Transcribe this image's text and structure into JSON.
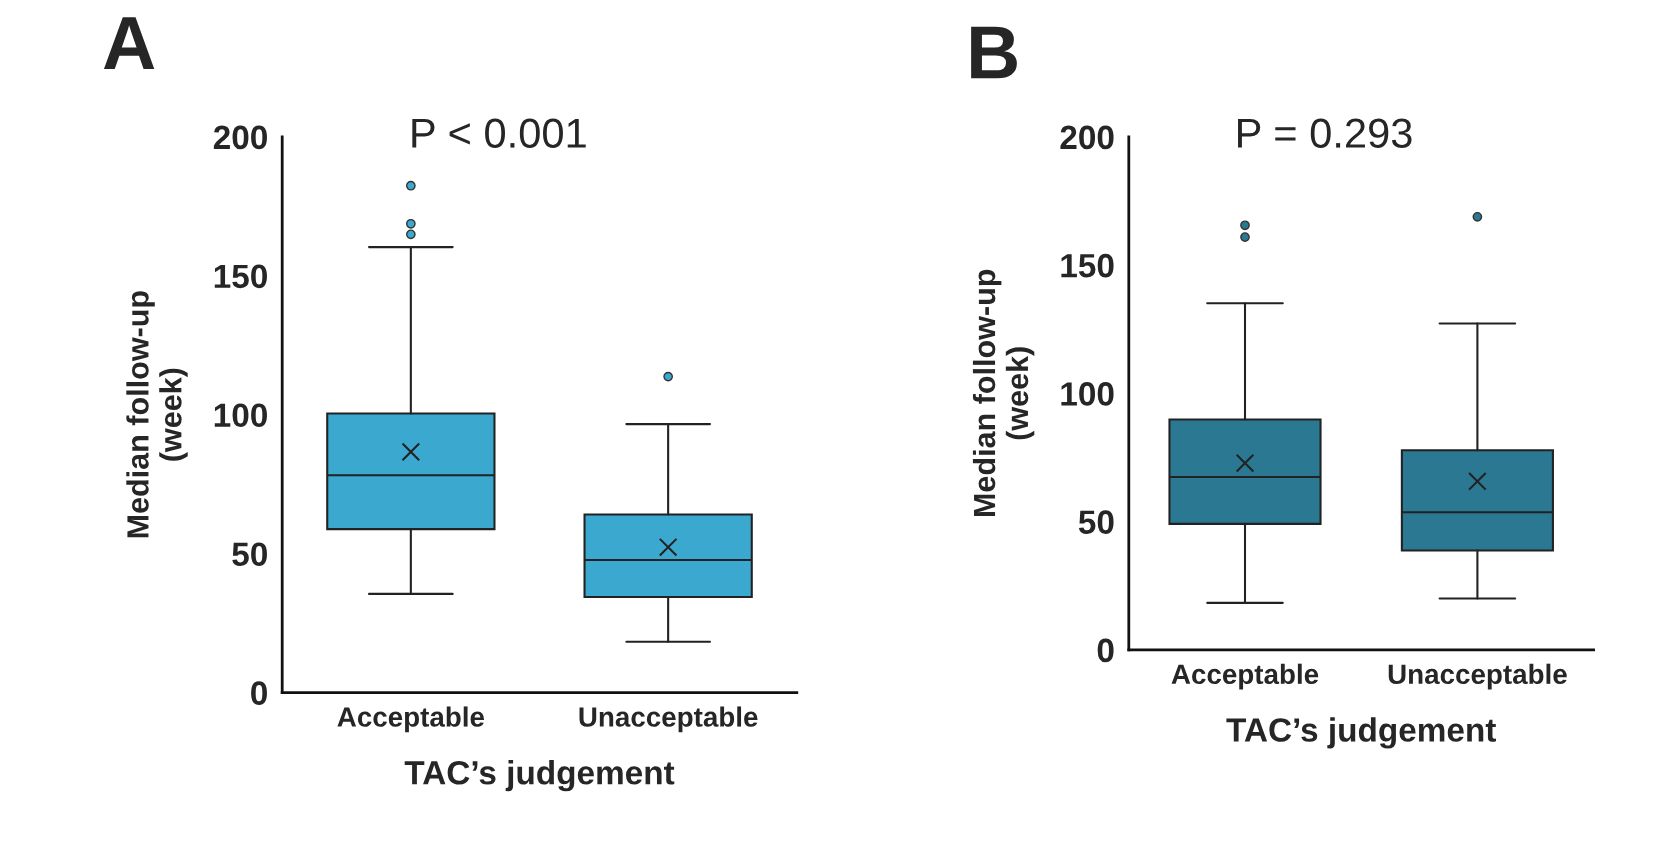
{
  "chart_data": [
    {
      "type": "box",
      "title": "A",
      "xlabel": "TAC’s judgement",
      "ylabel": "Median follow-up\n(week)",
      "annotations": [
        "P < 0.001"
      ],
      "categories": [
        "Acceptable",
        "Unacceptable"
      ],
      "ylim": [
        0,
        200
      ],
      "yticks": [
        0,
        50,
        100,
        150,
        200
      ],
      "series": [
        {
          "color": "#3aa8cf",
          "boxes": [
            {
              "low": 35.5,
              "q1": 58.8,
              "median": 78.2,
              "q3": 100.4,
              "high": 160.3,
              "mean": 86.6,
              "outliers": [
                182.4,
                168.7,
                164.9
              ]
            },
            {
              "low": 18.3,
              "q1": 34.4,
              "median": 47.7,
              "q3": 64.1,
              "high": 96.6,
              "mean": 52.3,
              "outliers": [
                113.7
              ]
            }
          ]
        }
      ]
    },
    {
      "type": "box",
      "title": "B",
      "xlabel": "TAC’s judgement",
      "ylabel": "Median follow-up\n(week)",
      "annotations": [
        "P = 0.293"
      ],
      "categories": [
        "Acceptable",
        "Unacceptable"
      ],
      "ylim": [
        0,
        200
      ],
      "yticks": [
        0,
        50,
        100,
        150,
        200
      ],
      "series": [
        {
          "color": "#2a7891",
          "boxes": [
            {
              "low": 18.3,
              "q1": 49.1,
              "median": 67.4,
              "q3": 89.8,
              "high": 135.1,
              "mean": 72.8,
              "outliers": [
                165.5,
                160.9
              ]
            },
            {
              "low": 20.0,
              "q1": 38.7,
              "median": 53.6,
              "q3": 77.8,
              "high": 127.2,
              "mean": 65.7,
              "outliers": [
                168.8
              ]
            }
          ]
        }
      ]
    }
  ]
}
